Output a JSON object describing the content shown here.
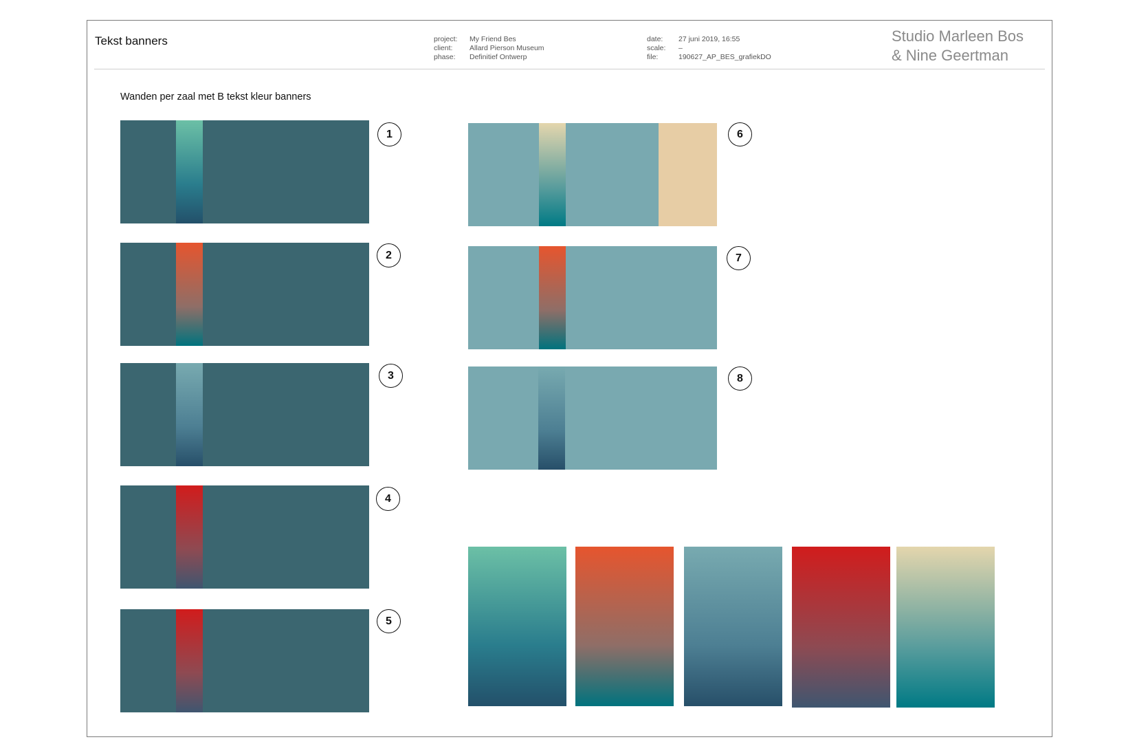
{
  "header": {
    "title": "Tekst banners",
    "meta_left": [
      {
        "key": "project:",
        "value": "My Friend Bes"
      },
      {
        "key": "client:",
        "value": "Allard Pierson Museum"
      },
      {
        "key": "phase:",
        "value": "Definitief Ontwerp"
      }
    ],
    "meta_right": [
      {
        "key": "date:",
        "value": "27 juni 2019, 16:55"
      },
      {
        "key": "scale:",
        "value": "–"
      },
      {
        "key": "file:",
        "value": "190627_AP_BES_grafiekDO"
      }
    ],
    "studio_line1": "Studio Marleen Bos",
    "studio_line2": "& Nine Geertman"
  },
  "subtitle": "Wanden per zaal met B tekst kleur banners",
  "colors": {
    "wall_dark": "#3b6670",
    "wall_light": "#79a9b0",
    "panel_sand": "#e7cda5"
  },
  "gradients": {
    "green": [
      "#6cc0a6",
      "#2a7d8d",
      "#23506a"
    ],
    "orange": [
      "#e6552e",
      "#8f6e67",
      "#00737e"
    ],
    "blue": [
      "#78aab0",
      "#4d7f93",
      "#274f69"
    ],
    "red": [
      "#d11c1c",
      "#8e4a52",
      "#3f5670"
    ],
    "sand": [
      "#e4d6ad",
      "#5a9d9d",
      "#007a85"
    ]
  },
  "walls": [
    {
      "number": "1",
      "gradient": "green"
    },
    {
      "number": "2",
      "gradient": "orange"
    },
    {
      "number": "3",
      "gradient": "blue"
    },
    {
      "number": "4",
      "gradient": "red"
    },
    {
      "number": "5",
      "gradient": "red"
    },
    {
      "number": "6",
      "gradient": "sand"
    },
    {
      "number": "7",
      "gradient": "orange"
    },
    {
      "number": "8",
      "gradient": "blue"
    }
  ],
  "swatches": [
    "green",
    "orange",
    "blue",
    "red",
    "sand"
  ]
}
